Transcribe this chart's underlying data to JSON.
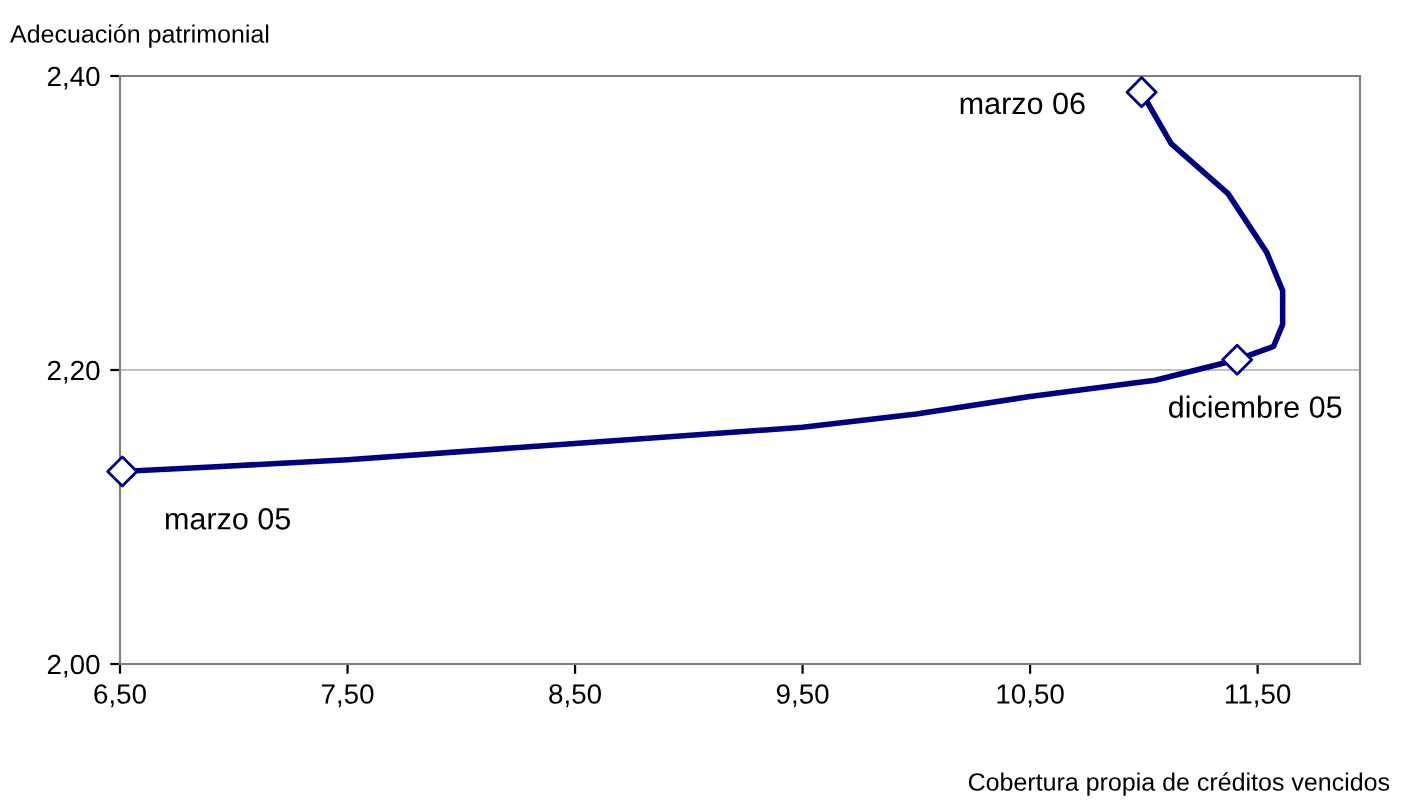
{
  "chart_data": {
    "type": "line",
    "xlabel": "Cobertura propia de créditos vencidos",
    "ylabel": "Adecuación patrimonial",
    "xlim": [
      6.5,
      11.95
    ],
    "ylim": [
      2.0,
      2.4
    ],
    "xticks": [
      {
        "value": 6.5,
        "label": "6,50"
      },
      {
        "value": 7.5,
        "label": "7,50"
      },
      {
        "value": 8.5,
        "label": "8,50"
      },
      {
        "value": 9.5,
        "label": "9,50"
      },
      {
        "value": 10.5,
        "label": "10,50"
      },
      {
        "value": 11.5,
        "label": "11,50"
      }
    ],
    "yticks": [
      {
        "value": 2.0,
        "label": "2,00"
      },
      {
        "value": 2.2,
        "label": "2,20"
      },
      {
        "value": 2.4,
        "label": "2,40"
      }
    ],
    "grid": "y",
    "series": [
      {
        "color": "#000080",
        "marker": "none",
        "line_style": "solid",
        "x": [
          6.51,
          6.9,
          7.5,
          8.5,
          9.5,
          10.0,
          10.5,
          11.05,
          11.41,
          11.57,
          11.61,
          11.61,
          11.54,
          11.37,
          11.12,
          10.99
        ],
        "values": [
          2.131,
          2.134,
          2.139,
          2.15,
          2.161,
          2.17,
          2.182,
          2.193,
          2.207,
          2.216,
          2.231,
          2.254,
          2.28,
          2.32,
          2.354,
          2.389
        ]
      },
      {
        "type": "scatter",
        "color": "#000080",
        "marker": "diamond",
        "x": [
          6.51,
          11.41,
          10.99
        ],
        "values": [
          2.131,
          2.207,
          2.389
        ]
      }
    ],
    "annotations": [
      {
        "text": "marzo 05",
        "x": 6.51,
        "y": 2.131
      },
      {
        "text": "diciembre 05",
        "x": 11.41,
        "y": 2.207
      },
      {
        "text": "marzo 06",
        "x": 10.99,
        "y": 2.389
      }
    ]
  }
}
